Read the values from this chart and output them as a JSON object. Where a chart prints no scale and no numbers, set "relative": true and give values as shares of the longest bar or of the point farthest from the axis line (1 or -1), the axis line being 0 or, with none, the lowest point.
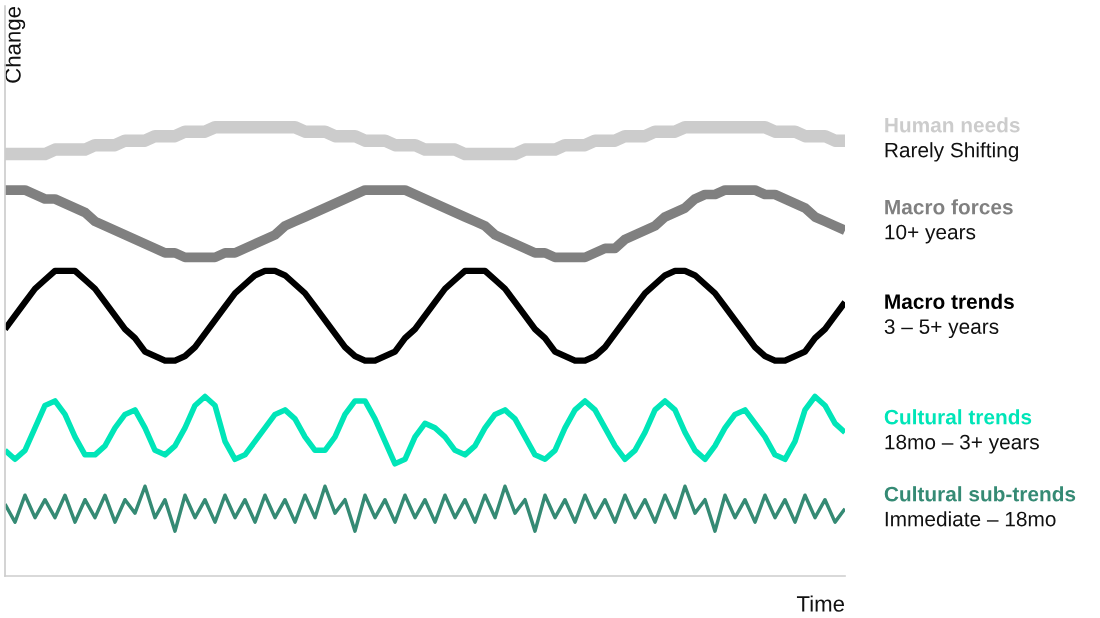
{
  "chart_data": {
    "type": "line",
    "relative": true,
    "tick_labels": false,
    "ylabel": "Change",
    "xlabel": "Time",
    "categories": [
      null,
      null,
      null,
      null,
      null,
      null,
      null,
      null,
      null,
      null,
      null,
      null,
      null,
      null,
      null,
      null,
      null,
      null,
      null,
      null,
      null,
      null,
      null,
      null,
      null,
      null,
      null,
      null,
      null,
      null,
      null,
      null,
      null,
      null,
      null,
      null,
      null,
      null,
      null,
      null,
      null,
      null,
      null,
      null,
      null,
      null,
      null,
      null,
      null,
      null,
      null,
      null,
      null,
      null,
      null,
      null,
      null,
      null,
      null,
      null,
      null,
      null,
      null,
      null,
      null,
      null,
      null,
      null,
      null,
      null,
      null,
      null,
      null,
      null,
      null,
      null,
      null,
      null,
      null,
      null,
      null,
      null,
      null,
      null,
      null
    ],
    "series": [
      {
        "name": "Human needs",
        "color": "#cccccc",
        "values": [
          0.94,
          0.94,
          0.94,
          0.94,
          0.94,
          0.95,
          0.95,
          0.95,
          0.95,
          0.96,
          0.96,
          0.96,
          0.97,
          0.97,
          0.97,
          0.98,
          0.98,
          0.98,
          0.99,
          0.99,
          0.99,
          1.0,
          1.0,
          1.0,
          1.0,
          1.0,
          1.0,
          1.0,
          1.0,
          1.0,
          0.99,
          0.99,
          0.99,
          0.98,
          0.98,
          0.98,
          0.97,
          0.97,
          0.97,
          0.96,
          0.96,
          0.96,
          0.95,
          0.95,
          0.95,
          0.95,
          0.94,
          0.94,
          0.94,
          0.94,
          0.94,
          0.94,
          0.95,
          0.95,
          0.95,
          0.95,
          0.96,
          0.96,
          0.96,
          0.97,
          0.97,
          0.97,
          0.98,
          0.98,
          0.98,
          0.99,
          0.99,
          0.99,
          1.0,
          1.0,
          1.0,
          1.0,
          1.0,
          1.0,
          1.0,
          1.0,
          1.0,
          0.99,
          0.99,
          0.99,
          0.98,
          0.98,
          0.98,
          0.97,
          0.97
        ]
      },
      {
        "name": "Macro forces",
        "color": "#808080",
        "values": [
          0.86,
          0.86,
          0.86,
          0.85,
          0.84,
          0.84,
          0.83,
          0.82,
          0.81,
          0.79,
          0.78,
          0.77,
          0.76,
          0.75,
          0.74,
          0.73,
          0.72,
          0.72,
          0.71,
          0.71,
          0.71,
          0.71,
          0.72,
          0.72,
          0.73,
          0.74,
          0.75,
          0.76,
          0.78,
          0.79,
          0.8,
          0.81,
          0.82,
          0.83,
          0.84,
          0.85,
          0.86,
          0.86,
          0.86,
          0.86,
          0.86,
          0.85,
          0.84,
          0.83,
          0.82,
          0.81,
          0.8,
          0.79,
          0.78,
          0.76,
          0.75,
          0.74,
          0.73,
          0.72,
          0.72,
          0.71,
          0.71,
          0.71,
          0.71,
          0.72,
          0.73,
          0.73,
          0.75,
          0.76,
          0.77,
          0.78,
          0.8,
          0.81,
          0.82,
          0.84,
          0.85,
          0.85,
          0.86,
          0.86,
          0.86,
          0.86,
          0.85,
          0.85,
          0.84,
          0.83,
          0.82,
          0.8,
          0.79,
          0.78,
          0.77
        ]
      },
      {
        "name": "Macro trends",
        "color": "#000000",
        "values": [
          0.55,
          0.58,
          0.61,
          0.64,
          0.66,
          0.68,
          0.68,
          0.68,
          0.66,
          0.64,
          0.61,
          0.58,
          0.55,
          0.53,
          0.5,
          0.49,
          0.48,
          0.48,
          0.49,
          0.51,
          0.54,
          0.57,
          0.6,
          0.63,
          0.65,
          0.67,
          0.68,
          0.68,
          0.67,
          0.65,
          0.63,
          0.6,
          0.57,
          0.54,
          0.51,
          0.49,
          0.48,
          0.48,
          0.49,
          0.5,
          0.53,
          0.55,
          0.58,
          0.61,
          0.64,
          0.66,
          0.68,
          0.68,
          0.68,
          0.66,
          0.64,
          0.61,
          0.58,
          0.55,
          0.53,
          0.5,
          0.49,
          0.48,
          0.48,
          0.49,
          0.51,
          0.54,
          0.57,
          0.6,
          0.63,
          0.65,
          0.67,
          0.68,
          0.68,
          0.67,
          0.65,
          0.63,
          0.6,
          0.57,
          0.54,
          0.51,
          0.49,
          0.48,
          0.48,
          0.49,
          0.5,
          0.53,
          0.55,
          0.58,
          0.61
        ]
      },
      {
        "name": "Cultural trends",
        "color": "#00e5b8",
        "values": [
          0.28,
          0.26,
          0.28,
          0.33,
          0.38,
          0.39,
          0.36,
          0.31,
          0.27,
          0.27,
          0.29,
          0.33,
          0.36,
          0.37,
          0.33,
          0.28,
          0.27,
          0.29,
          0.33,
          0.38,
          0.4,
          0.38,
          0.3,
          0.26,
          0.27,
          0.3,
          0.33,
          0.36,
          0.37,
          0.35,
          0.31,
          0.28,
          0.28,
          0.31,
          0.36,
          0.39,
          0.39,
          0.35,
          0.3,
          0.25,
          0.26,
          0.31,
          0.34,
          0.33,
          0.31,
          0.28,
          0.27,
          0.29,
          0.33,
          0.36,
          0.37,
          0.35,
          0.31,
          0.27,
          0.26,
          0.28,
          0.33,
          0.37,
          0.39,
          0.37,
          0.33,
          0.29,
          0.26,
          0.28,
          0.32,
          0.37,
          0.39,
          0.37,
          0.32,
          0.28,
          0.26,
          0.29,
          0.33,
          0.36,
          0.37,
          0.34,
          0.31,
          0.27,
          0.26,
          0.3,
          0.37,
          0.4,
          0.38,
          0.34,
          0.32
        ]
      },
      {
        "name": "Cultural sub-trends",
        "color": "#358a74",
        "values": [
          0.16,
          0.12,
          0.18,
          0.13,
          0.17,
          0.13,
          0.18,
          0.12,
          0.17,
          0.13,
          0.18,
          0.12,
          0.17,
          0.14,
          0.2,
          0.13,
          0.17,
          0.1,
          0.18,
          0.13,
          0.17,
          0.12,
          0.18,
          0.13,
          0.17,
          0.12,
          0.18,
          0.13,
          0.17,
          0.12,
          0.18,
          0.13,
          0.2,
          0.14,
          0.17,
          0.1,
          0.18,
          0.13,
          0.17,
          0.12,
          0.18,
          0.13,
          0.17,
          0.12,
          0.18,
          0.13,
          0.17,
          0.12,
          0.18,
          0.13,
          0.2,
          0.14,
          0.17,
          0.1,
          0.18,
          0.13,
          0.17,
          0.12,
          0.18,
          0.13,
          0.17,
          0.12,
          0.18,
          0.13,
          0.17,
          0.12,
          0.18,
          0.13,
          0.2,
          0.14,
          0.17,
          0.1,
          0.18,
          0.13,
          0.17,
          0.12,
          0.18,
          0.13,
          0.17,
          0.12,
          0.18,
          0.13,
          0.17,
          0.12,
          0.15
        ]
      }
    ],
    "annotations": [
      "Rarely Shifting",
      "10+ years",
      "3 – 5+ years",
      "18mo – 3+ years",
      "Immediate – 18mo"
    ]
  }
}
